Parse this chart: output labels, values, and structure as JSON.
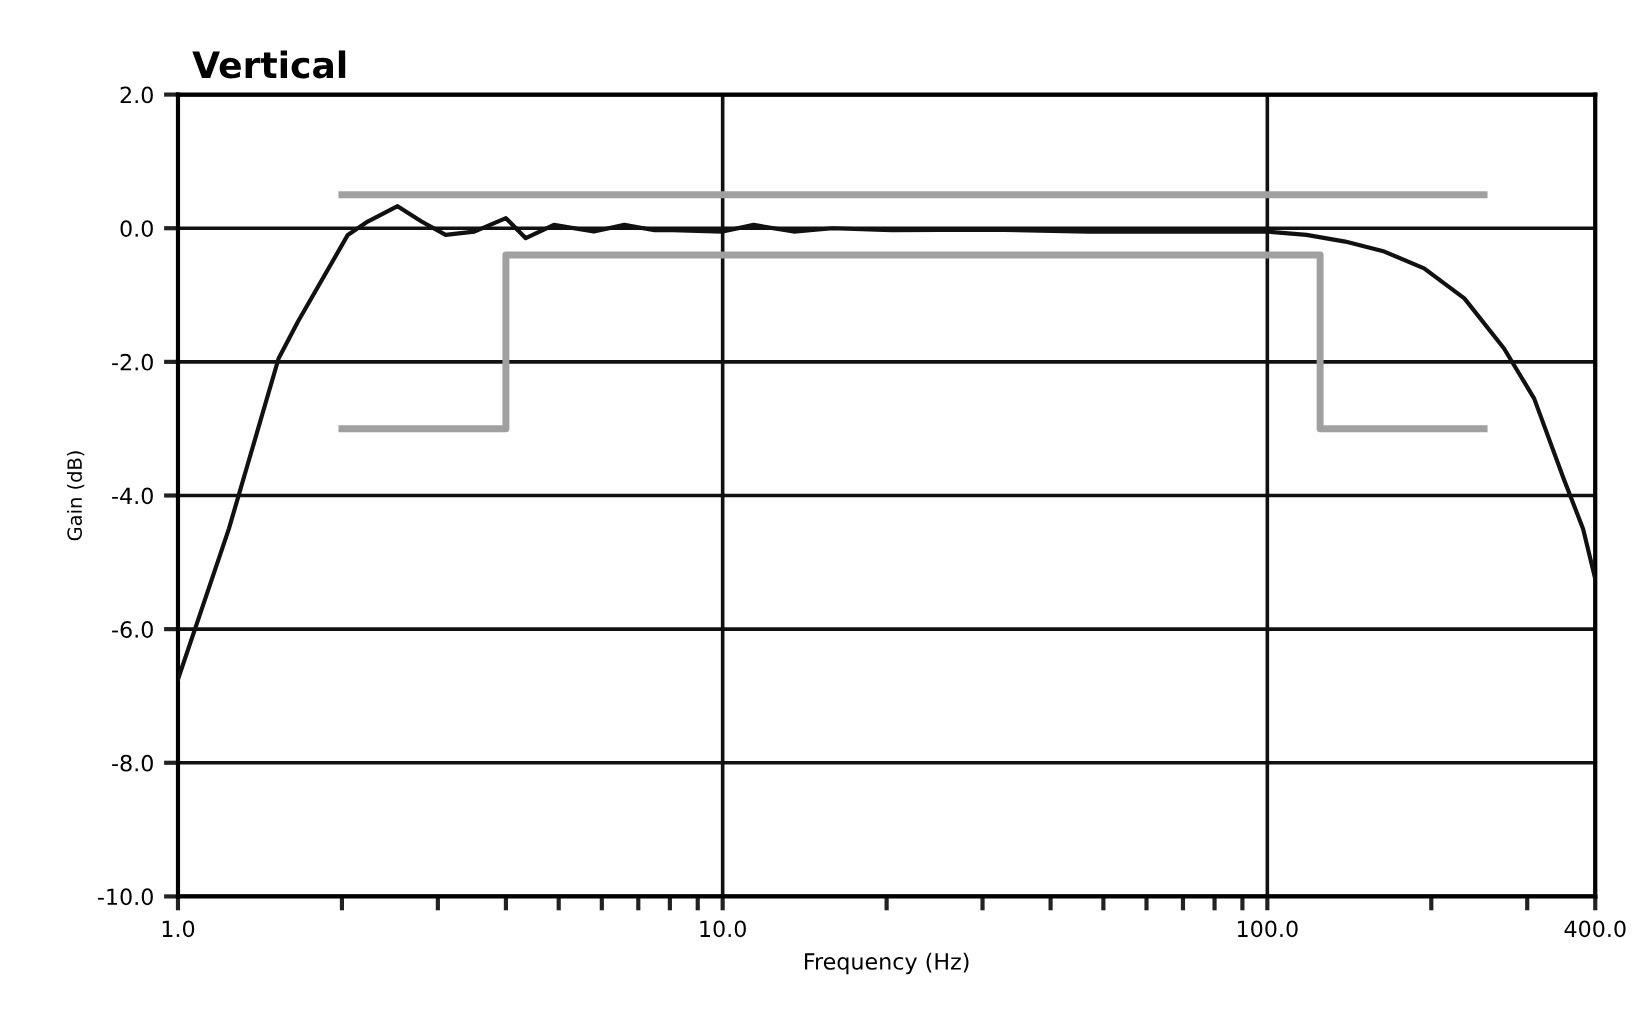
{
  "chart_data": {
    "type": "line",
    "title": "Vertical",
    "xlabel": "Frequency (Hz)",
    "ylabel": "Gain (dB)",
    "log": "x",
    "grid": true,
    "marker": "none",
    "line_style": "solid",
    "xlim": [
      1,
      400
    ],
    "ylim": [
      -10,
      2
    ],
    "xticks": [
      {
        "value": 1,
        "label": "1.0"
      },
      {
        "value": 2,
        "label": null
      },
      {
        "value": 3,
        "label": null
      },
      {
        "value": 4,
        "label": null
      },
      {
        "value": 5,
        "label": null
      },
      {
        "value": 6,
        "label": null
      },
      {
        "value": 7,
        "label": null
      },
      {
        "value": 8,
        "label": null
      },
      {
        "value": 9,
        "label": null
      },
      {
        "value": 10,
        "label": "10.0"
      },
      {
        "value": 20,
        "label": null
      },
      {
        "value": 30,
        "label": null
      },
      {
        "value": 40,
        "label": null
      },
      {
        "value": 50,
        "label": null
      },
      {
        "value": 60,
        "label": null
      },
      {
        "value": 70,
        "label": null
      },
      {
        "value": 80,
        "label": null
      },
      {
        "value": 90,
        "label": null
      },
      {
        "value": 100,
        "label": "100.0"
      },
      {
        "value": 200,
        "label": null
      },
      {
        "value": 300,
        "label": null
      },
      {
        "value": 400,
        "label": "400.0"
      }
    ],
    "yticks": [
      {
        "value": 2,
        "label": "2.0"
      },
      {
        "value": 0,
        "label": "0.0"
      },
      {
        "value": -2,
        "label": "-2.0"
      },
      {
        "value": -4,
        "label": "-4.0"
      },
      {
        "value": -6,
        "label": "-6.0"
      },
      {
        "value": -8,
        "label": "-8.0"
      },
      {
        "value": -10,
        "label": "-10.0"
      }
    ],
    "series": [
      {
        "color": "#a0a0a0",
        "x": [
          2,
          250
        ],
        "values": [
          0.5,
          0.5
        ]
      },
      {
        "color": "#a0a0a0",
        "x": [
          2,
          4,
          4,
          125,
          125,
          250
        ],
        "values": [
          -3.0,
          -3.0,
          -0.4,
          -0.4,
          -3.0,
          -3.0
        ]
      },
      {
        "color": "#111111",
        "x": [
          1.0,
          1.24,
          1.53,
          1.66,
          2.05,
          2.23,
          2.53,
          2.8,
          3.1,
          3.5,
          4.0,
          4.35,
          4.9,
          5.8,
          6.6,
          7.5,
          8.1,
          10,
          11.4,
          13.5,
          15.9,
          20.4,
          31,
          47,
          71,
          100,
          118,
          139,
          164,
          194,
          230,
          272,
          309,
          350,
          380,
          400
        ],
        "values": [
          -6.75,
          -4.5,
          -1.95,
          -1.4,
          -0.1,
          0.1,
          0.33,
          0.1,
          -0.1,
          -0.05,
          0.15,
          -0.15,
          0.05,
          -0.05,
          0.05,
          -0.03,
          -0.03,
          -0.05,
          0.05,
          -0.05,
          0.0,
          -0.03,
          -0.02,
          -0.05,
          -0.05,
          -0.05,
          -0.1,
          -0.2,
          -0.35,
          -0.6,
          -1.05,
          -1.8,
          -2.55,
          -3.75,
          -4.5,
          -5.25
        ]
      }
    ]
  }
}
